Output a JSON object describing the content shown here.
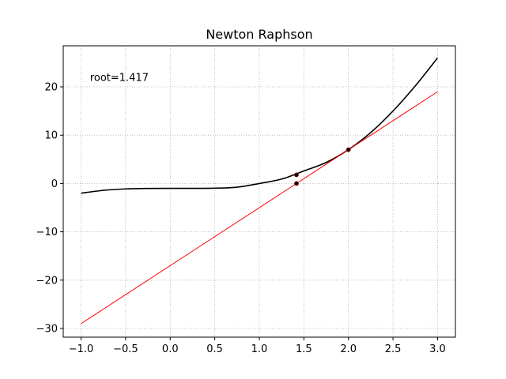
{
  "chart_data": {
    "type": "line",
    "title": "Newton Raphson",
    "xlabel": "",
    "ylabel": "",
    "xlim": [
      -1.2,
      3.2
    ],
    "ylim": [
      -31.8,
      28.5
    ],
    "grid": true,
    "grid_style": "dotted",
    "x_ticks": [
      -1.0,
      -0.5,
      0.0,
      0.5,
      1.0,
      1.5,
      2.0,
      2.5,
      3.0
    ],
    "x_tick_labels": [
      "−1.0",
      "−0.5",
      "0.0",
      "0.5",
      "1.0",
      "1.5",
      "2.0",
      "2.5",
      "3.0"
    ],
    "y_ticks": [
      -30,
      -20,
      -10,
      0,
      10,
      20
    ],
    "y_tick_labels": [
      "−30",
      "−20",
      "−10",
      "0",
      "10",
      "20"
    ],
    "annotation": {
      "text": "root=1.417",
      "x": -0.9,
      "y": 22
    },
    "series": [
      {
        "color": "#000000",
        "style": "curve",
        "x": [
          -1.0,
          -0.75,
          -0.5,
          -0.25,
          0.0,
          0.25,
          0.5,
          0.75,
          1.0,
          1.25,
          1.5,
          1.75,
          2.0,
          2.25,
          2.5,
          2.75,
          3.0
        ],
        "y": [
          -2.0,
          -1.42,
          -1.12,
          -1.02,
          -1.0,
          -1.0,
          -0.97,
          -0.76,
          0.0,
          0.92,
          2.6,
          4.36,
          7.0,
          10.54,
          15.0,
          20.2,
          26.0
        ]
      },
      {
        "color": "#ff0000",
        "style": "tangent",
        "x": [
          -1.0,
          3.0
        ],
        "y": [
          -29.0,
          19.0
        ]
      }
    ],
    "points": [
      {
        "x": 2.0,
        "y": 7.0
      },
      {
        "x": 1.417,
        "y": 1.8
      },
      {
        "x": 1.417,
        "y": 0.0
      }
    ]
  }
}
